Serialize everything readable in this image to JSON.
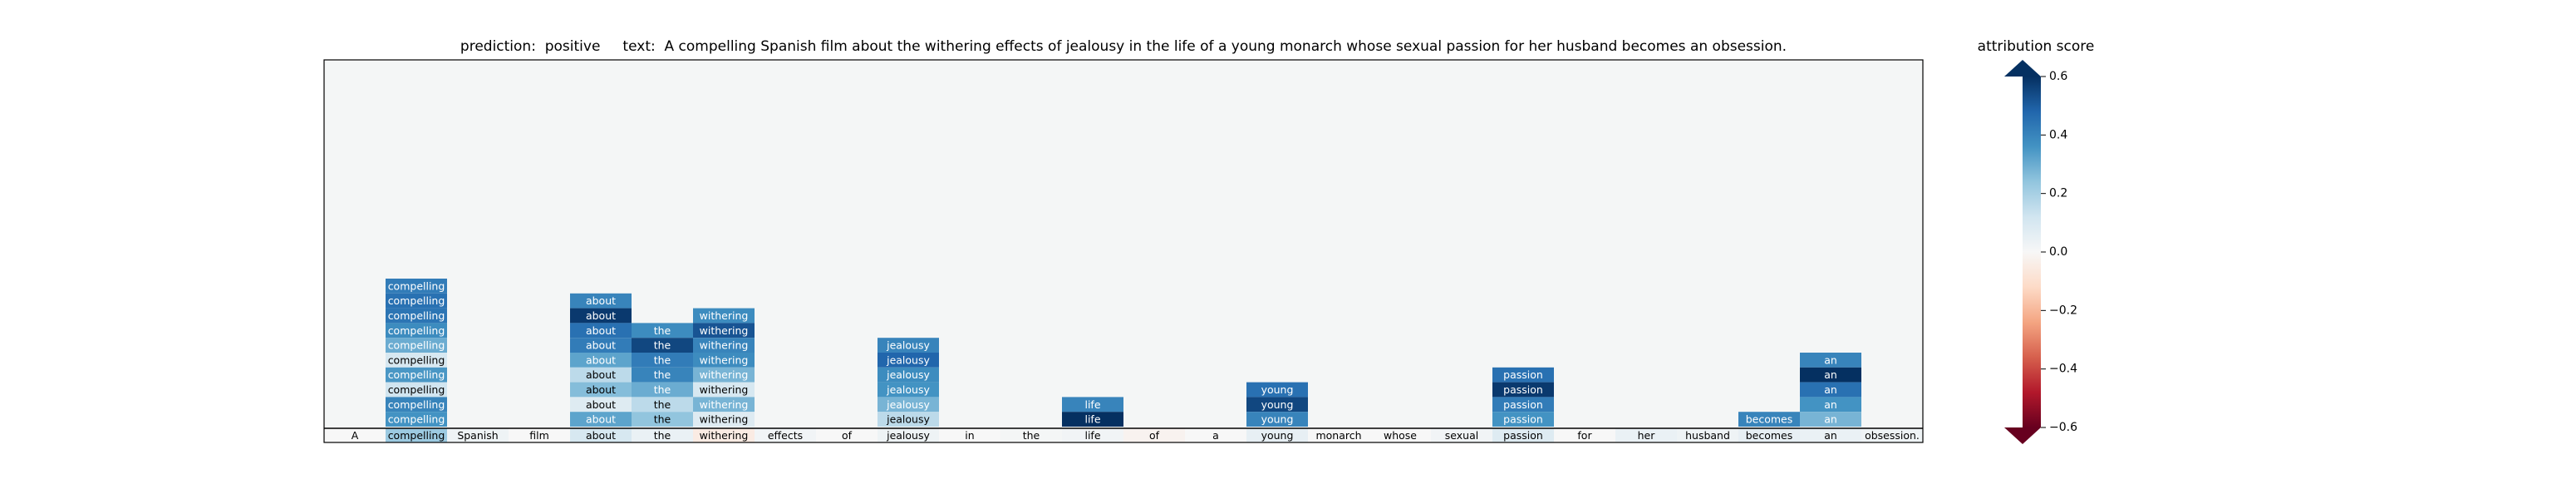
{
  "header": {
    "title": "prediction:  positive     text:  A compelling Spanish film about the withering effects of jealousy in the life of a young monarch whose sexual passion for her husband becomes an obsession."
  },
  "colorbar": {
    "label": "attribution score",
    "range": [
      -0.6,
      0.6
    ],
    "ticks": [
      "0.6",
      "0.4",
      "0.2",
      "0.0",
      "−0.2",
      "−0.4",
      "−0.6"
    ],
    "extend": "both",
    "colormap": "RdBu"
  },
  "chart_data": {
    "type": "heatmap",
    "title": "prediction:  positive     text:  A compelling Spanish film about the withering effects of jealousy in the life of a young monarch whose sexual passion for her husband becomes an obsession.",
    "prediction": "positive",
    "colorbar_label": "attribution score",
    "value_range": [
      -0.6,
      0.6
    ],
    "tokens": [
      "A",
      "compelling",
      "Spanish",
      "film",
      "about",
      "the",
      "withering",
      "effects",
      "of",
      "jealousy",
      "in",
      "the",
      "life",
      "of",
      "a",
      "young",
      "monarch",
      "whose",
      "sexual",
      "passion",
      "for",
      "her",
      "husband",
      "becomes",
      "an",
      "obsession."
    ],
    "base_row_scores": [
      0.0,
      0.22,
      0.03,
      0.0,
      0.1,
      0.04,
      -0.05,
      0.02,
      0.0,
      0.03,
      0.0,
      0.01,
      0.02,
      -0.02,
      0.0,
      0.05,
      0.0,
      0.0,
      0.02,
      0.08,
      0.0,
      0.04,
      0.03,
      0.05,
      0.04,
      0.03
    ],
    "stacked_cells": [
      {
        "token": "compelling",
        "scores": [
          0.42,
          0.45,
          0.44,
          0.38,
          0.3,
          0.1,
          0.35,
          0.12,
          0.4,
          0.36
        ]
      },
      {
        "token": "about",
        "scores": [
          0.4,
          0.58,
          0.45,
          0.42,
          0.32,
          0.16,
          0.26,
          0.08,
          0.32
        ]
      },
      {
        "token": "the",
        "scores": [
          0.38,
          0.55,
          0.42,
          0.4,
          0.3,
          0.16,
          0.24
        ]
      },
      {
        "token": "withering",
        "scores": [
          0.38,
          0.52,
          0.4,
          0.38,
          0.28,
          0.1,
          0.28,
          0.08
        ]
      },
      {
        "token": "jealousy",
        "scores": [
          0.4,
          0.48,
          0.38,
          0.36,
          0.28,
          0.16
        ]
      },
      {
        "token": "life",
        "scores": [
          0.4,
          0.6
        ]
      },
      {
        "token": "young",
        "scores": [
          0.45,
          0.55,
          0.4
        ]
      },
      {
        "token": "passion",
        "scores": [
          0.45,
          0.58,
          0.42,
          0.36
        ]
      },
      {
        "token": "becomes",
        "scores": [
          0.4
        ]
      },
      {
        "token": "an",
        "scores": [
          0.4,
          0.6,
          0.45,
          0.36,
          0.28
        ]
      }
    ]
  }
}
